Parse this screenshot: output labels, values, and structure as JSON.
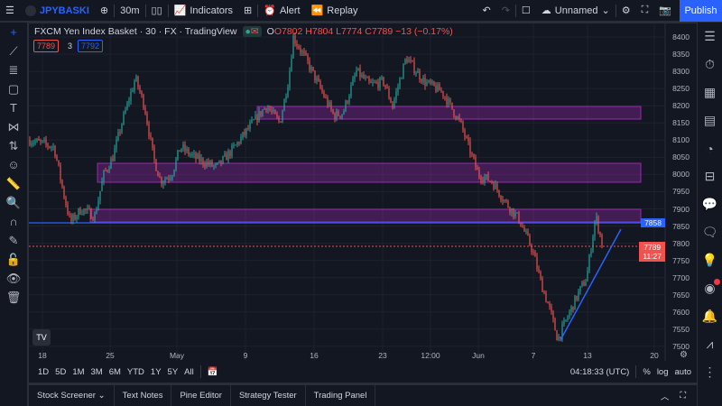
{
  "toolbar": {
    "symbol": "JPYBASKI",
    "interval": "30m",
    "indicators": "Indicators",
    "alert": "Alert",
    "replay": "Replay",
    "layout_name": "Unnamed",
    "publish": "Publish"
  },
  "legend": {
    "title": "FXCM Yen Index Basket · 30 · FX · TradingView",
    "open": "O7802",
    "high": "H7804",
    "low": "L7774",
    "close": "C7789",
    "change": "−13 (−0.17%)",
    "bid": "7789",
    "spread": "3",
    "ask": "7792"
  },
  "price_axis": {
    "ticks": [
      "8400",
      "8350",
      "8300",
      "8250",
      "8200",
      "8150",
      "8100",
      "8050",
      "8000",
      "7950",
      "7900",
      "7850",
      "7800",
      "7750",
      "7700",
      "7650",
      "7600",
      "7550",
      "7500"
    ],
    "marker_level": "7858",
    "last_price": "7789",
    "countdown": "11:27"
  },
  "time_axis": {
    "ticks": [
      "18",
      "25",
      "May",
      "9",
      "16",
      "23",
      "12:00",
      "Jun",
      "7",
      "13",
      "20"
    ]
  },
  "ranges": [
    "1D",
    "5D",
    "1M",
    "3M",
    "6M",
    "YTD",
    "1Y",
    "5Y",
    "All"
  ],
  "clock": "04:18:33 (UTC)",
  "scale_options": [
    "%",
    "log",
    "auto"
  ],
  "bottom_tabs": [
    "Stock Screener",
    "Text Notes",
    "Pine Editor",
    "Strategy Tester",
    "Trading Panel"
  ],
  "colors": {
    "up": "#26a69a",
    "down": "#ef5350",
    "accent": "#2962ff",
    "zone": "#9c27b0"
  }
}
